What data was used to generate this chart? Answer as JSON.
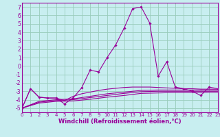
{
  "xlabel": "Windchill (Refroidissement éolien,°C)",
  "bg_color": "#c8eef0",
  "line_color": "#990099",
  "grid_color": "#99ccbb",
  "series": [
    [
      0,
      -5.0
    ],
    [
      1,
      -2.7
    ],
    [
      2,
      -3.7
    ],
    [
      3,
      -3.8
    ],
    [
      4,
      -3.8
    ],
    [
      5,
      -4.5
    ],
    [
      6,
      -3.8
    ],
    [
      7,
      -2.6
    ],
    [
      8,
      -0.5
    ],
    [
      9,
      -0.7
    ],
    [
      10,
      1.0
    ],
    [
      11,
      2.5
    ],
    [
      12,
      4.5
    ],
    [
      13,
      6.8
    ],
    [
      14,
      7.0
    ],
    [
      15,
      5.1
    ],
    [
      16,
      -1.2
    ],
    [
      17,
      0.5
    ],
    [
      18,
      -2.5
    ],
    [
      19,
      -2.7
    ],
    [
      20,
      -3.0
    ],
    [
      21,
      -3.5
    ],
    [
      22,
      -2.5
    ],
    [
      23,
      -2.7
    ]
  ],
  "extra_lines": [
    [
      [
        0,
        -5.0
      ],
      [
        1,
        -2.7
      ],
      [
        2,
        -3.7
      ],
      [
        3,
        -3.8
      ],
      [
        4,
        -3.8
      ],
      [
        5,
        -4.1
      ],
      [
        6,
        -3.6
      ],
      [
        7,
        -3.3
      ],
      [
        8,
        -3.1
      ],
      [
        9,
        -2.9
      ],
      [
        10,
        -2.75
      ],
      [
        11,
        -2.65
      ],
      [
        12,
        -2.55
      ],
      [
        13,
        -2.5
      ],
      [
        14,
        -2.5
      ],
      [
        15,
        -2.5
      ],
      [
        16,
        -2.55
      ],
      [
        17,
        -2.6
      ],
      [
        18,
        -2.65
      ],
      [
        19,
        -2.7
      ],
      [
        20,
        -2.7
      ],
      [
        21,
        -2.75
      ],
      [
        22,
        -2.75
      ],
      [
        23,
        -2.75
      ]
    ],
    [
      [
        0,
        -5.0
      ],
      [
        2,
        -4.2
      ],
      [
        4,
        -4.0
      ],
      [
        6,
        -3.9
      ],
      [
        8,
        -3.6
      ],
      [
        10,
        -3.3
      ],
      [
        12,
        -3.1
      ],
      [
        14,
        -2.9
      ],
      [
        16,
        -2.85
      ],
      [
        18,
        -2.85
      ],
      [
        20,
        -2.85
      ],
      [
        22,
        -2.85
      ],
      [
        23,
        -2.85
      ]
    ],
    [
      [
        0,
        -5.0
      ],
      [
        2,
        -4.3
      ],
      [
        4,
        -4.1
      ],
      [
        6,
        -4.0
      ],
      [
        8,
        -3.75
      ],
      [
        10,
        -3.5
      ],
      [
        12,
        -3.25
      ],
      [
        14,
        -3.05
      ],
      [
        16,
        -3.0
      ],
      [
        18,
        -3.0
      ],
      [
        20,
        -3.0
      ],
      [
        22,
        -3.0
      ],
      [
        23,
        -3.0
      ]
    ],
    [
      [
        0,
        -5.0
      ],
      [
        2,
        -4.4
      ],
      [
        4,
        -4.2
      ],
      [
        6,
        -4.15
      ],
      [
        8,
        -3.95
      ],
      [
        10,
        -3.7
      ],
      [
        12,
        -3.5
      ],
      [
        14,
        -3.25
      ],
      [
        16,
        -3.2
      ],
      [
        18,
        -3.15
      ],
      [
        20,
        -3.15
      ],
      [
        22,
        -3.1
      ],
      [
        23,
        -3.1
      ]
    ]
  ],
  "xlim": [
    0,
    23
  ],
  "ylim": [
    -5.5,
    7.5
  ],
  "yticks": [
    -5,
    -4,
    -3,
    -2,
    -1,
    0,
    1,
    2,
    3,
    4,
    5,
    6,
    7
  ],
  "xticks": [
    0,
    1,
    2,
    3,
    4,
    5,
    6,
    7,
    8,
    9,
    10,
    11,
    12,
    13,
    14,
    15,
    16,
    17,
    18,
    19,
    20,
    21,
    22,
    23
  ]
}
